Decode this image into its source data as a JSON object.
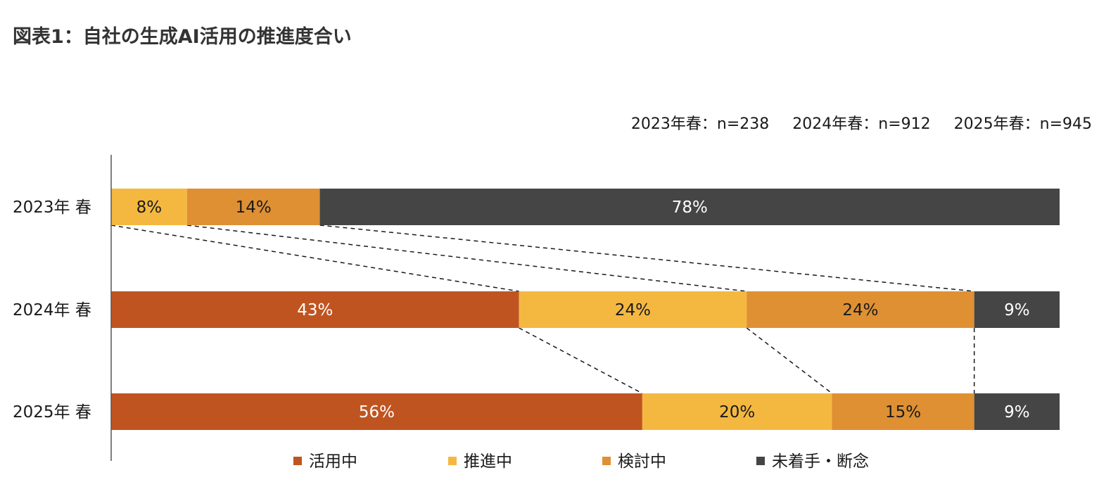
{
  "title": "図表1：自社の生成AI活用の推進度合い",
  "sample_sizes": [
    "2023年春：n=238",
    "2024年春：n=912",
    "2025年春：n=945"
  ],
  "chart_data": {
    "type": "bar",
    "orientation": "horizontal",
    "stacked": "percent",
    "categories": [
      "2023年 春",
      "2024年 春",
      "2025年 春"
    ],
    "series": [
      {
        "name": "活用中",
        "color": "#c05420",
        "label_color": "#ffffff",
        "values": [
          0,
          43,
          56
        ]
      },
      {
        "name": "推進中",
        "color": "#f4b841",
        "label_color": "#1a1a1a",
        "values": [
          8,
          24,
          20
        ]
      },
      {
        "name": "検討中",
        "color": "#df9033",
        "label_color": "#1a1a1a",
        "values": [
          14,
          24,
          15
        ]
      },
      {
        "name": "未着手・断念",
        "color": "#454545",
        "label_color": "#ffffff",
        "values": [
          78,
          9,
          9
        ]
      }
    ],
    "value_suffix": "%",
    "connector_lines": "dashed",
    "legend": "bottom",
    "grid": false
  }
}
